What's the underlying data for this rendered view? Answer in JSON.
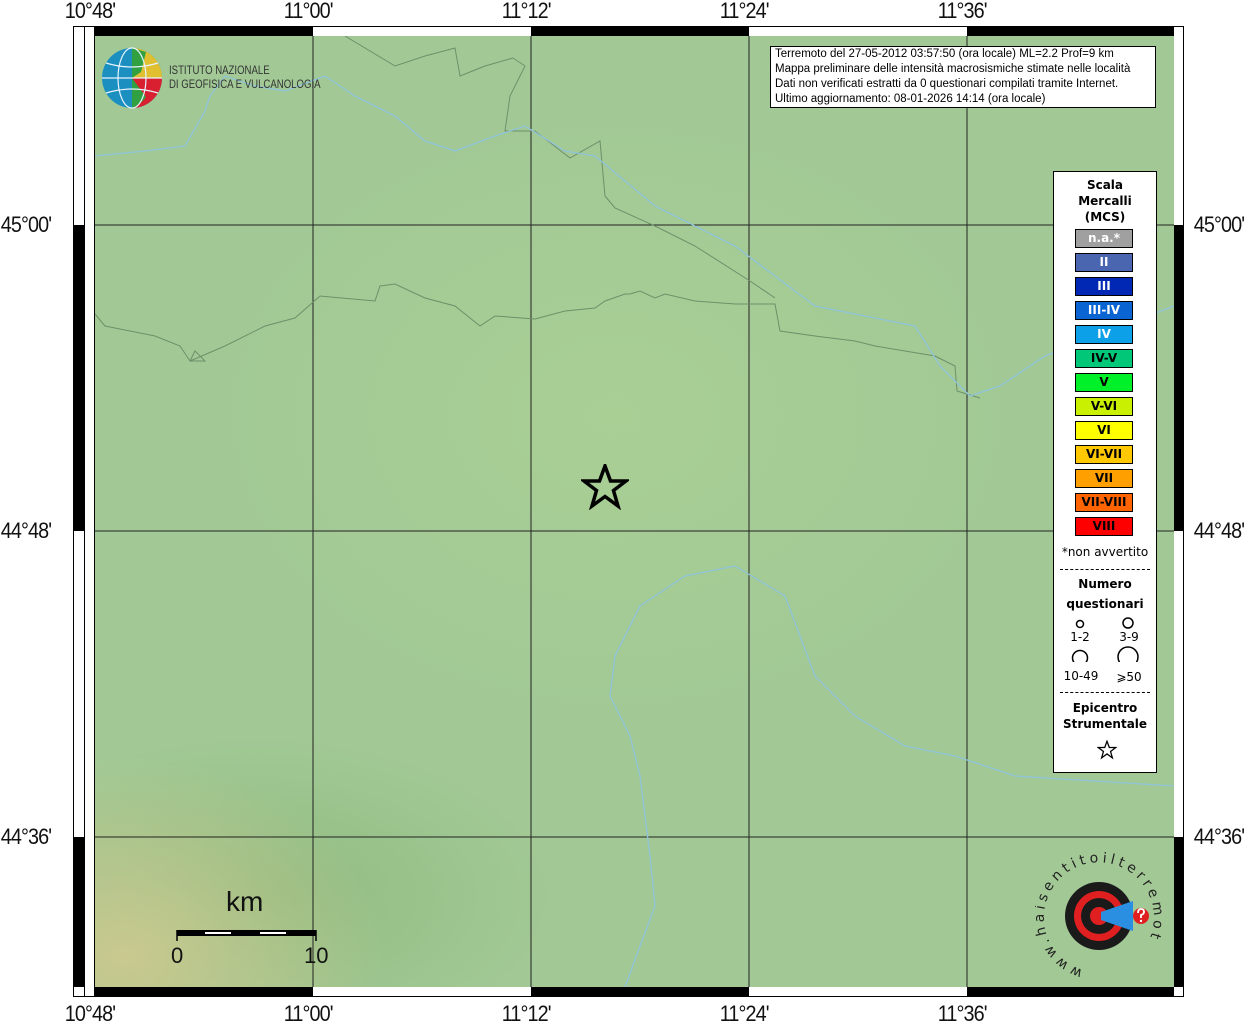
{
  "axes": {
    "lon_ticks": [
      "10°48'",
      "11°00'",
      "11°12'",
      "11°24'",
      "11°36'"
    ],
    "lat_ticks": [
      "45°00'",
      "44°48'",
      "44°36'"
    ]
  },
  "logo_ingv": {
    "line1": "ISTITUTO NAZIONALE",
    "line2": "DI GEOFISICA E VULCANOLOGIA"
  },
  "info": {
    "line1": "Terremoto del 27-05-2012 03:57:50 (ora locale) ML=2.2 Prof=9 km",
    "line2": "Mappa preliminare delle intensità macrosismiche stimate nelle località",
    "line3": "Dati non verificati estratti da 0 questionari compilati tramite Internet.",
    "line4": "Ultimo aggiornamento: 08-01-2026 14:14 (ora locale)"
  },
  "legend": {
    "title": [
      "Scala",
      "Mercalli",
      "(MCS)"
    ],
    "classes": [
      {
        "label": "n.a.*",
        "color": "#a0a0a0",
        "text": "#ffffff"
      },
      {
        "label": "II",
        "color": "#4a66b0",
        "text": "#ffffff"
      },
      {
        "label": "III",
        "color": "#0028b4",
        "text": "#ffffff"
      },
      {
        "label": "III-IV",
        "color": "#0a64d2",
        "text": "#ffffff"
      },
      {
        "label": "IV",
        "color": "#0ca0e8",
        "text": "#ffffff"
      },
      {
        "label": "IV-V",
        "color": "#00c878",
        "text": "#000000"
      },
      {
        "label": "V",
        "color": "#00f02a",
        "text": "#000000"
      },
      {
        "label": "V-VI",
        "color": "#c8f000",
        "text": "#000000"
      },
      {
        "label": "VI",
        "color": "#ffff00",
        "text": "#000000"
      },
      {
        "label": "VI-VII",
        "color": "#ffc800",
        "text": "#000000"
      },
      {
        "label": "VII",
        "color": "#ffa000",
        "text": "#000000"
      },
      {
        "label": "VII-VIII",
        "color": "#ff6400",
        "text": "#000000"
      },
      {
        "label": "VIII",
        "color": "#ff0000",
        "text": "#000000"
      }
    ],
    "footnote": "*non avvertito",
    "count_title": [
      "Numero",
      "questionari"
    ],
    "count_classes": [
      "1-2",
      "3-9",
      "10-49",
      "⩾50"
    ],
    "epicenter_title": [
      "Epicentro",
      "Strumentale"
    ]
  },
  "scalebar": {
    "unit": "km",
    "min": "0",
    "max": "10"
  },
  "logo_hst": {
    "text": "www.haisentitoilterremoto.it"
  }
}
